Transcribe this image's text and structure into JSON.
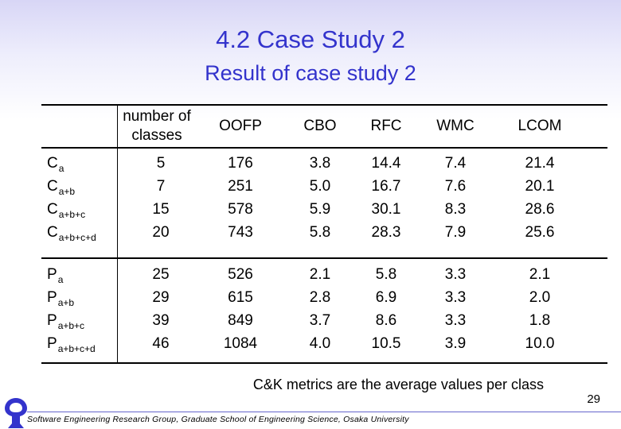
{
  "slide": {
    "title": "4.2 Case Study 2",
    "subtitle": "Result of case study 2",
    "note": "C&K metrics are the average values per class",
    "page_number": "29",
    "footer": "Software Engineering Research Group, Graduate School of Engineering Science, Osaka University"
  },
  "table": {
    "headers": [
      "number of classes",
      "OOFP",
      "CBO",
      "RFC",
      "WMC",
      "LCOM"
    ],
    "header_lines": [
      [
        "number of",
        "classes"
      ],
      [
        "OOFP"
      ],
      [
        "CBO"
      ],
      [
        "RFC"
      ],
      [
        "WMC"
      ],
      [
        "LCOM"
      ]
    ],
    "groups": [
      {
        "rows": [
          {
            "base": "C",
            "sub": "a",
            "values": [
              "5",
              "176",
              "3.8",
              "14.4",
              "7.4",
              "21.4"
            ]
          },
          {
            "base": "C",
            "sub": "a+b",
            "values": [
              "7",
              "251",
              "5.0",
              "16.7",
              "7.6",
              "20.1"
            ]
          },
          {
            "base": "C",
            "sub": "a+b+c",
            "values": [
              "15",
              "578",
              "5.9",
              "30.1",
              "8.3",
              "28.6"
            ]
          },
          {
            "base": "C",
            "sub": "a+b+c+d",
            "values": [
              "20",
              "743",
              "5.8",
              "28.3",
              "7.9",
              "25.6"
            ]
          }
        ]
      },
      {
        "rows": [
          {
            "base": "P",
            "sub": "a",
            "values": [
              "25",
              "526",
              "2.1",
              "5.8",
              "3.3",
              "2.1"
            ]
          },
          {
            "base": "P",
            "sub": "a+b",
            "values": [
              "29",
              "615",
              "2.8",
              "6.9",
              "3.3",
              "2.0"
            ]
          },
          {
            "base": "P",
            "sub": "a+b+c",
            "values": [
              "39",
              "849",
              "3.7",
              "8.6",
              "3.3",
              "1.8"
            ]
          },
          {
            "base": "P",
            "sub": "a+b+c+d",
            "values": [
              "46",
              "1084",
              "4.0",
              "10.5",
              "3.9",
              "10.0"
            ]
          }
        ]
      }
    ]
  },
  "colors": {
    "title": "#3333cc",
    "text": "#000000",
    "logo": "#3333cc"
  },
  "icons": {
    "logo": "university-logo-icon"
  }
}
